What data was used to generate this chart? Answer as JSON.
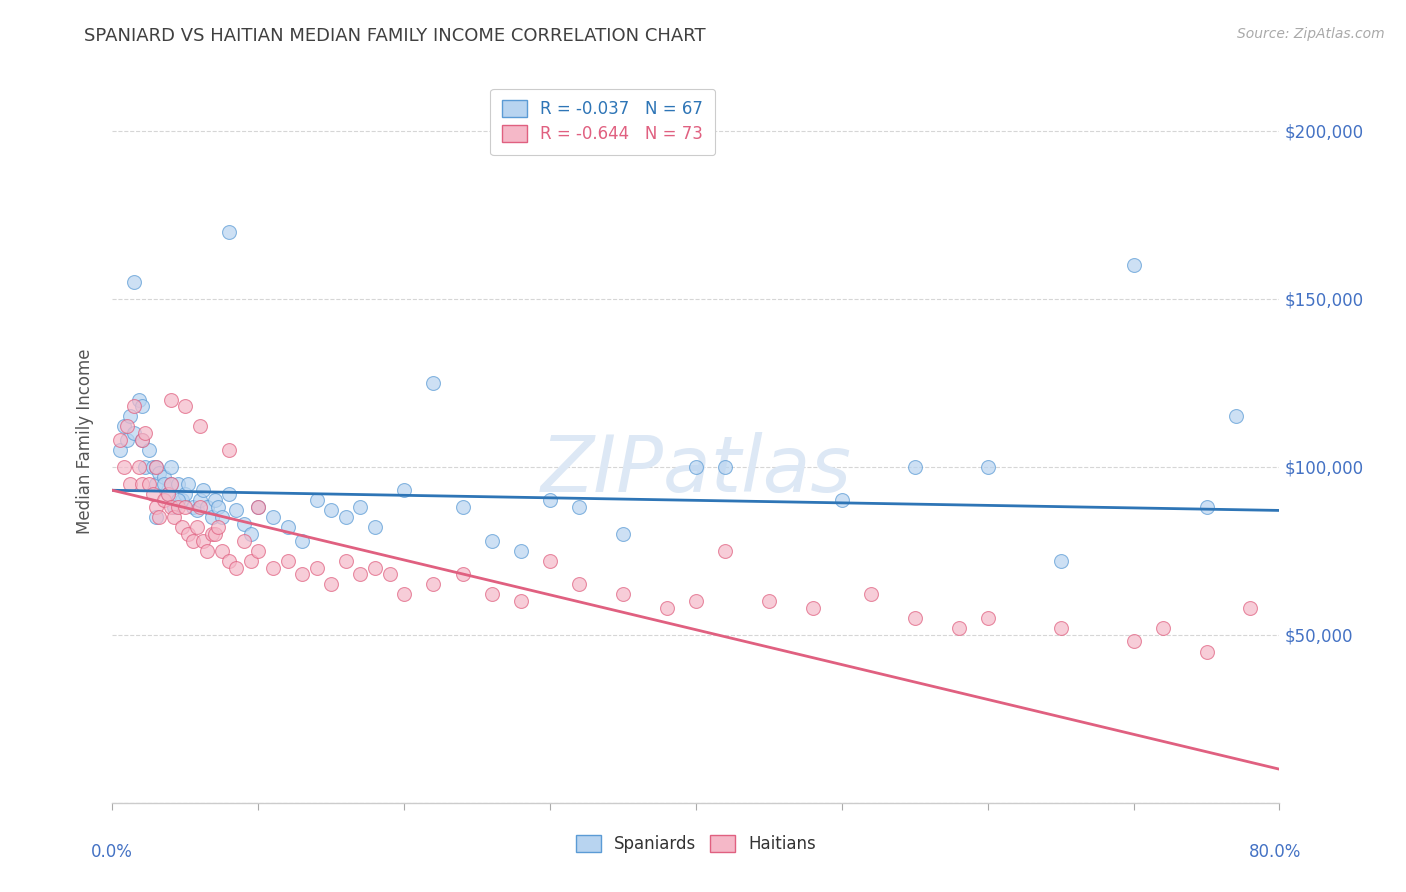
{
  "title": "SPANIARD VS HAITIAN MEDIAN FAMILY INCOME CORRELATION CHART",
  "source": "Source: ZipAtlas.com",
  "ylabel": "Median Family Income",
  "xrange": [
    0.0,
    80.0
  ],
  "yrange": [
    0,
    215000
  ],
  "spaniards_R": -0.037,
  "spaniards_N": 67,
  "haitians_R": -0.644,
  "haitians_N": 73,
  "color_spaniard_fill": "#b8d4f0",
  "color_spaniard_edge": "#5b9bd5",
  "color_haitian_fill": "#f5b8c8",
  "color_haitian_edge": "#e06080",
  "color_line_spaniard": "#2e75b6",
  "color_line_haitian": "#e06080",
  "color_axis_right": "#4472c4",
  "color_title": "#404040",
  "color_source": "#aaaaaa",
  "color_grid": "#cccccc",
  "background_color": "#ffffff",
  "trend_spaniard": [
    93000,
    87000
  ],
  "trend_haitian": [
    93000,
    10000
  ],
  "spaniard_x": [
    0.5,
    0.8,
    1.0,
    1.2,
    1.5,
    1.5,
    1.8,
    2.0,
    2.0,
    2.2,
    2.5,
    2.8,
    3.0,
    3.0,
    3.2,
    3.5,
    3.5,
    3.8,
    4.0,
    4.0,
    4.2,
    4.5,
    4.8,
    5.0,
    5.2,
    5.5,
    5.8,
    6.0,
    6.2,
    6.5,
    6.8,
    7.0,
    7.2,
    7.5,
    8.0,
    8.0,
    8.5,
    9.0,
    9.5,
    10.0,
    11.0,
    12.0,
    13.0,
    14.0,
    15.0,
    16.0,
    17.0,
    18.0,
    20.0,
    22.0,
    24.0,
    26.0,
    28.0,
    30.0,
    32.0,
    35.0,
    40.0,
    42.0,
    50.0,
    55.0,
    60.0,
    65.0,
    70.0,
    75.0,
    77.0,
    3.0,
    4.5
  ],
  "spaniard_y": [
    105000,
    112000,
    108000,
    115000,
    110000,
    155000,
    120000,
    108000,
    118000,
    100000,
    105000,
    100000,
    100000,
    95000,
    98000,
    97000,
    95000,
    92000,
    100000,
    95000,
    88000,
    95000,
    90000,
    92000,
    95000,
    88000,
    87000,
    90000,
    93000,
    88000,
    85000,
    90000,
    88000,
    85000,
    92000,
    170000,
    87000,
    83000,
    80000,
    88000,
    85000,
    82000,
    78000,
    90000,
    87000,
    85000,
    88000,
    82000,
    93000,
    125000,
    88000,
    78000,
    75000,
    90000,
    88000,
    80000,
    100000,
    100000,
    90000,
    100000,
    100000,
    72000,
    160000,
    88000,
    115000,
    85000,
    90000
  ],
  "haitian_x": [
    0.5,
    0.8,
    1.0,
    1.2,
    1.5,
    1.8,
    2.0,
    2.0,
    2.2,
    2.5,
    2.8,
    3.0,
    3.0,
    3.2,
    3.5,
    3.8,
    4.0,
    4.0,
    4.2,
    4.5,
    4.8,
    5.0,
    5.2,
    5.5,
    5.8,
    6.0,
    6.2,
    6.5,
    6.8,
    7.0,
    7.2,
    7.5,
    8.0,
    8.5,
    9.0,
    9.5,
    10.0,
    11.0,
    12.0,
    13.0,
    14.0,
    15.0,
    16.0,
    17.0,
    18.0,
    19.0,
    20.0,
    22.0,
    24.0,
    26.0,
    28.0,
    30.0,
    32.0,
    35.0,
    38.0,
    40.0,
    42.0,
    45.0,
    48.0,
    52.0,
    55.0,
    58.0,
    60.0,
    65.0,
    70.0,
    72.0,
    75.0,
    78.0,
    4.0,
    5.0,
    6.0,
    8.0,
    10.0
  ],
  "haitian_y": [
    108000,
    100000,
    112000,
    95000,
    118000,
    100000,
    108000,
    95000,
    110000,
    95000,
    92000,
    100000,
    88000,
    85000,
    90000,
    92000,
    88000,
    95000,
    85000,
    88000,
    82000,
    88000,
    80000,
    78000,
    82000,
    88000,
    78000,
    75000,
    80000,
    80000,
    82000,
    75000,
    72000,
    70000,
    78000,
    72000,
    75000,
    70000,
    72000,
    68000,
    70000,
    65000,
    72000,
    68000,
    70000,
    68000,
    62000,
    65000,
    68000,
    62000,
    60000,
    72000,
    65000,
    62000,
    58000,
    60000,
    75000,
    60000,
    58000,
    62000,
    55000,
    52000,
    55000,
    52000,
    48000,
    52000,
    45000,
    58000,
    120000,
    118000,
    112000,
    105000,
    88000
  ]
}
